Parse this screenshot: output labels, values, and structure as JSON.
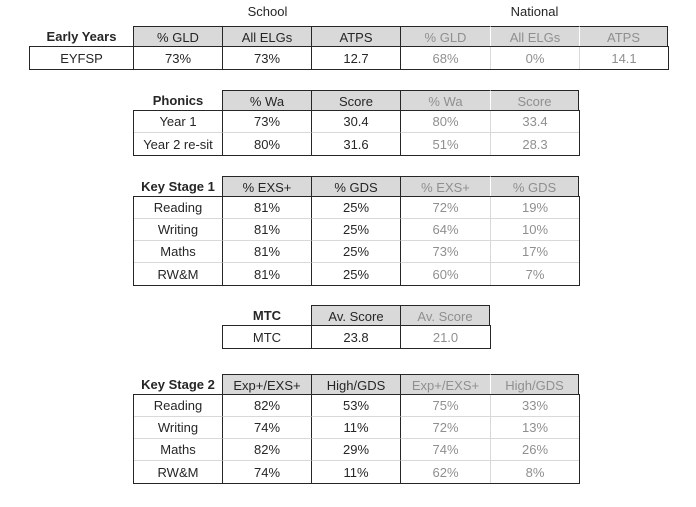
{
  "section_labels": {
    "school": "School",
    "national": "National"
  },
  "tables": [
    {
      "id": "early-years",
      "title": "Early Years",
      "school_columns": [
        "% GLD",
        "All ELGs",
        "ATPS"
      ],
      "national_columns": [
        "% GLD",
        "All ELGs",
        "ATPS"
      ],
      "rows": [
        {
          "label": "EYFSP",
          "school": [
            "73%",
            "73%",
            "12.7"
          ],
          "national": [
            "68%",
            "0%",
            "14.1"
          ]
        }
      ]
    },
    {
      "id": "phonics",
      "title": "Phonics",
      "school_columns": [
        "% Wa",
        "Score"
      ],
      "national_columns": [
        "% Wa",
        "Score"
      ],
      "rows": [
        {
          "label": "Year 1",
          "school": [
            "73%",
            "30.4"
          ],
          "national": [
            "80%",
            "33.4"
          ]
        },
        {
          "label": "Year 2 re-sit",
          "school": [
            "80%",
            "31.6"
          ],
          "national": [
            "51%",
            "28.3"
          ]
        }
      ]
    },
    {
      "id": "key-stage-1",
      "title": "Key Stage 1",
      "school_columns": [
        "% EXS+",
        "% GDS"
      ],
      "national_columns": [
        "% EXS+",
        "% GDS"
      ],
      "rows": [
        {
          "label": "Reading",
          "school": [
            "81%",
            "25%"
          ],
          "national": [
            "72%",
            "19%"
          ]
        },
        {
          "label": "Writing",
          "school": [
            "81%",
            "25%"
          ],
          "national": [
            "64%",
            "10%"
          ]
        },
        {
          "label": "Maths",
          "school": [
            "81%",
            "25%"
          ],
          "national": [
            "73%",
            "17%"
          ]
        },
        {
          "label": "RW&M",
          "school": [
            "81%",
            "25%"
          ],
          "national": [
            "60%",
            "7%"
          ]
        }
      ]
    },
    {
      "id": "mtc",
      "title": "MTC",
      "school_columns": [
        "Av. Score"
      ],
      "national_columns": [
        "Av. Score"
      ],
      "rows": [
        {
          "label": "MTC",
          "school": [
            "23.8"
          ],
          "national": [
            "21.0"
          ]
        }
      ]
    },
    {
      "id": "key-stage-2",
      "title": "Key Stage 2",
      "school_columns": [
        "Exp+/EXS+",
        "High/GDS"
      ],
      "national_columns": [
        "Exp+/EXS+",
        "High/GDS"
      ],
      "rows": [
        {
          "label": "Reading",
          "school": [
            "82%",
            "53%"
          ],
          "national": [
            "75%",
            "33%"
          ]
        },
        {
          "label": "Writing",
          "school": [
            "74%",
            "11%"
          ],
          "national": [
            "72%",
            "13%"
          ]
        },
        {
          "label": "Maths",
          "school": [
            "82%",
            "29%"
          ],
          "national": [
            "74%",
            "26%"
          ]
        },
        {
          "label": "RW&M",
          "school": [
            "74%",
            "11%"
          ],
          "national": [
            "62%",
            "8%"
          ]
        }
      ]
    }
  ],
  "colors": {
    "header_fill": "#d9d9d9",
    "school_text": "#262626",
    "national_text": "#8f8f8f",
    "grid_dark": "#262626",
    "grid_light": "#d9d9d9"
  }
}
